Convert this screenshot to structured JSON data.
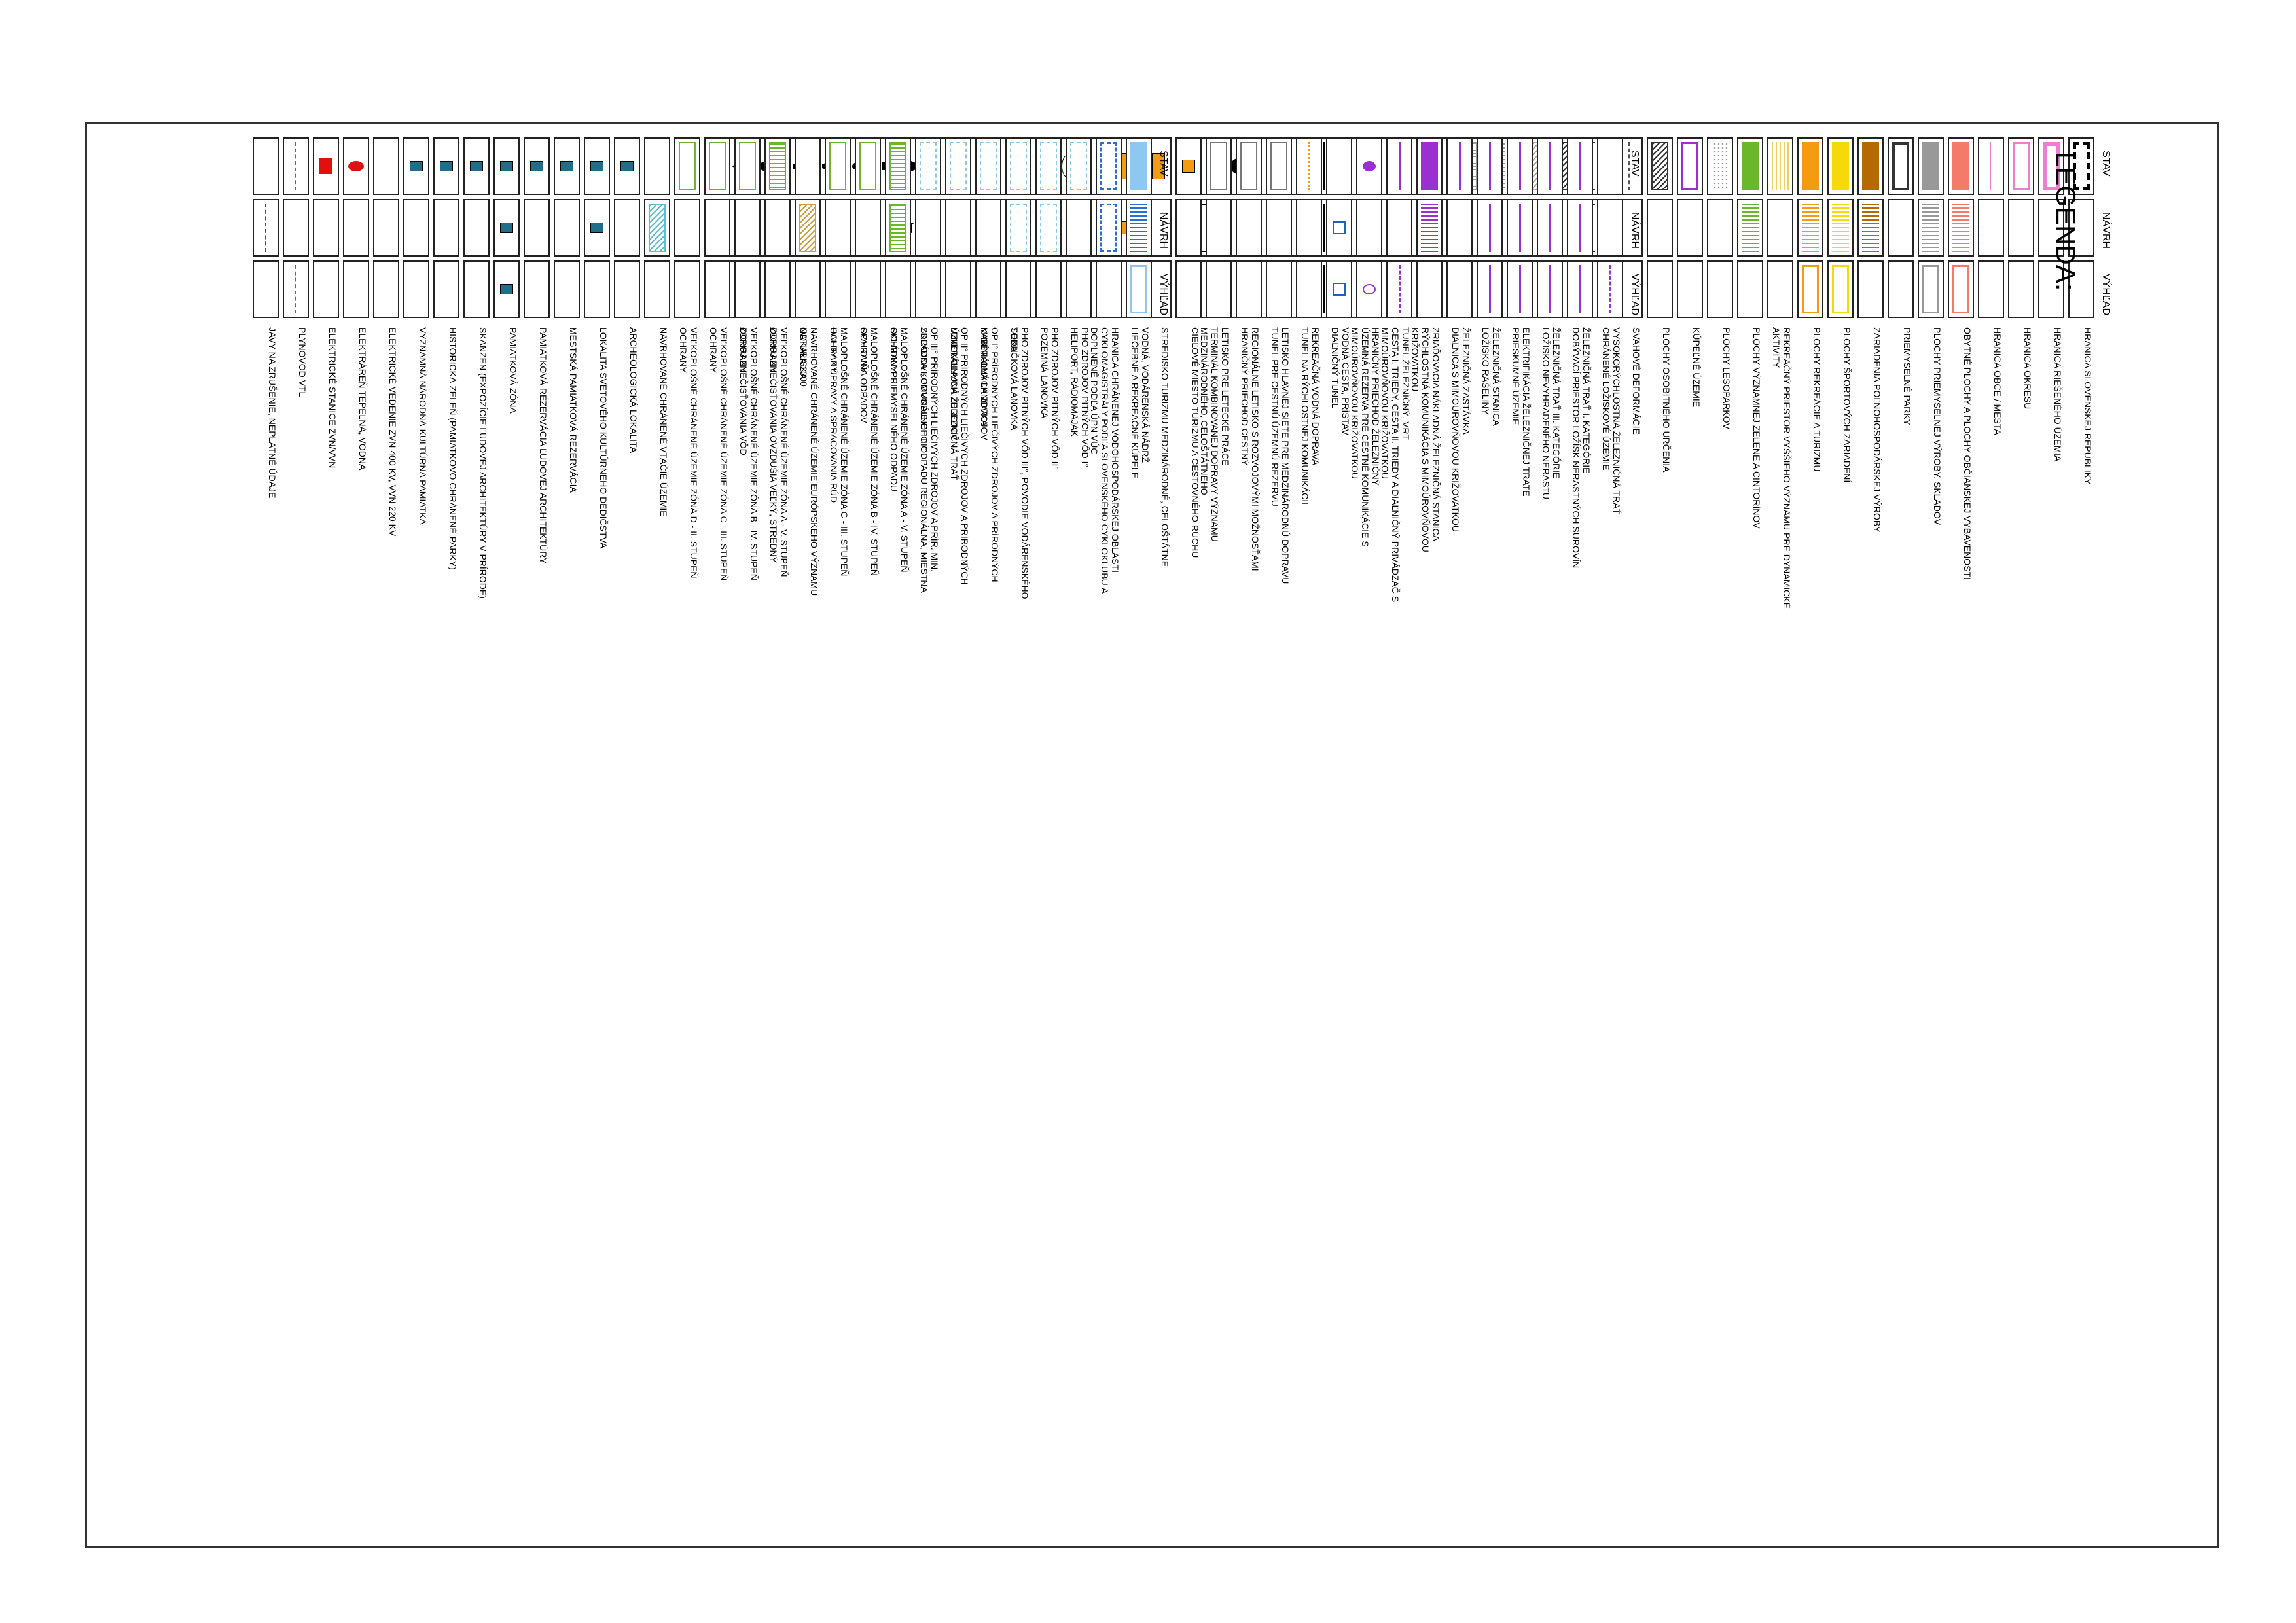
{
  "title": "LEGENDA:",
  "headers": {
    "stav": "STAV",
    "navrh": "NÁVRH",
    "vyhlad": "VÝHĽAD"
  },
  "colors": {
    "orange": "#f39c12",
    "yellow": "#f5d90a",
    "brown": "#b36b00",
    "green": "#6ab82a",
    "pink": "#f07dd4",
    "salmon": "#f47a6b",
    "purple": "#9b2fd1",
    "teal": "#1f6f8b",
    "lightblue": "#8ec8f0",
    "red": "#e01010"
  },
  "columns": [
    {
      "rows": [
        {
          "label": "HRANICA SLOVENSKEJ REPUBLIKY",
          "stav": "border-black",
          "navrh": "",
          "vyhlad": ""
        },
        {
          "label": "HRANICA RIEŠENÉHO ÚZEMIA",
          "stav": "pink-frame",
          "navrh": "",
          "vyhlad": ""
        },
        {
          "label": "HRANICA OKRESU",
          "stav": "pink-thin",
          "navrh": "",
          "vyhlad": ""
        },
        {
          "label": "HRANICA OBCE / MESTA",
          "stav": "pink-line",
          "navrh": "",
          "vyhlad": ""
        },
        {
          "label": "OBYTNÉ PLOCHY A PLOCHY OBČIANSKEJ VYBAVENOSTI",
          "stav": "salmon",
          "navrh": "salmon-hatch",
          "vyhlad": "salmon-frame"
        },
        {
          "label": "PLOCHY PRIEMYSELNEJ VÝROBY, SKLADOV",
          "stav": "gray",
          "navrh": "gray-hatch",
          "vyhlad": "gray-frame"
        },
        {
          "label": "PRIEMYSELNÉ PARKY",
          "stav": "black-frame",
          "navrh": "",
          "vyhlad": ""
        },
        {
          "label": "ZARIADENIA POĽNOHOSPODÁRSKEJ VÝROBY",
          "stav": "brown",
          "navrh": "brown-hatch",
          "vyhlad": ""
        },
        {
          "label": "PLOCHY ŠPORTOVÝCH ZARIADENÍ",
          "stav": "yellow",
          "navrh": "yellow-hatch",
          "vyhlad": "yellow-frame"
        },
        {
          "label": "PLOCHY REKREÁCIE A TURIZMU",
          "stav": "orange",
          "navrh": "orange-hatch",
          "vyhlad": "orange-frame"
        },
        {
          "label": "REKREAČNÝ PRIESTOR VYŠŠIEHO VÝZNAMU PRE DYNAMICKÉ AKTIVITY",
          "stav": "yellow-lines",
          "navrh": "",
          "vyhlad": ""
        },
        {
          "label": "PLOCHY VÝZNAMNEJ ZELENE A CINTORÍNOV",
          "stav": "green",
          "navrh": "green-hatch",
          "vyhlad": ""
        },
        {
          "label": "PLOCHY LESOPARKOV",
          "stav": "dots",
          "navrh": "",
          "vyhlad": ""
        },
        {
          "label": "KÚPEĽNÉ ÚZEMIE",
          "stav": "purple-frame",
          "navrh": "",
          "vyhlad": ""
        },
        {
          "label": "PLOCHY OSOBITNÉHO URČENIA",
          "stav": "diag",
          "navrh": "",
          "vyhlad": ""
        },
        {
          "label": "SVAHOVÉ DEFORMÁCIE",
          "stav": "dash-line",
          "navrh": "",
          "vyhlad": ""
        },
        {
          "label": "CHRÁNENÉ LOŽISKOVÉ ÚZEMIE",
          "stav": "tick-frame",
          "navrh": "tick-frame",
          "vyhlad": ""
        },
        {
          "label": "DOBÝVACÍ PRIESTOR LOŽÍSK NERASTNÝCH SUROVÍN",
          "stav": "diag",
          "navrh": "",
          "vyhlad": ""
        },
        {
          "label": "LOŽISKO NEVYHRADENÉHO NERASTU",
          "stav": "diag-light",
          "navrh": "",
          "vyhlad": ""
        },
        {
          "label": "PRIESKUMNÉ ÚZEMIE",
          "stav": "dots",
          "navrh": "",
          "vyhlad": ""
        },
        {
          "label": "LOŽISKO RAŠELINY",
          "stav": "grid",
          "navrh": "",
          "vyhlad": ""
        },
        {
          "label": "DIAĽNICA S MIMOÚROVŇOVOU KRIŽOVATKOU",
          "stav": "road-ring",
          "navrh": "road-ring",
          "vyhlad": "road-ring"
        },
        {
          "label": "RÝCHLOSTNÁ KOMUNIKÁCIA S MIMOÚROVŇOVOU KRIŽOVATKOU",
          "stav": "road-thick",
          "navrh": "road-thick",
          "vyhlad": "road-thick"
        },
        {
          "label": "CESTA I. TRIEDY, CESTA II. TRIEDY A DIAĽNIČNÝ PRIVÁDZAČ S MIMOÚROVŇOVOU KRIŽOVATKOU",
          "stav": "road-thin",
          "navrh": "road-thin",
          "vyhlad": "road-thin"
        },
        {
          "label": "ÚZEMNÁ REZERVA PRE CESTNÉ KOMUNIKÁCIE S MIMOÚROVŇOVOU KRIŽOVATKOU",
          "stav": "",
          "navrh": "",
          "vyhlad": "road-dash"
        },
        {
          "label": "DIAĽNIČNÝ TUNEL",
          "stav": "tunnel",
          "navrh": "tunnel",
          "vyhlad": "tunnel"
        },
        {
          "label": "TUNEL NA RÝCHLOSTNEJ KOMUNIKÁCII",
          "stav": "",
          "navrh": "tunnel-thin",
          "vyhlad": "tunnel-thin"
        },
        {
          "label": "TUNEL PRE CESTNÚ ÚZEMNÚ REZERVU",
          "stav": "",
          "navrh": "",
          "vyhlad": "road-dash"
        },
        {
          "label": "HRANIČNÝ PRIECHOD CESTNÝ",
          "stav": "crossing",
          "navrh": "",
          "vyhlad": ""
        },
        {
          "label": "TERMINÁL KOMBINOVANEJ DOPRAVY VÝZNAMU MEDZINÁRODNÉHO, CELOŠTÁTNEHO",
          "stav": "",
          "navrh": "tkd",
          "vyhlad": ""
        }
      ]
    },
    {
      "rows": [
        {
          "label": "VYSOKORÝCHLOSTNÁ ŽELEZNIČNÁ TRAŤ",
          "stav": "",
          "navrh": "",
          "vyhlad": "rail-dash"
        },
        {
          "label": "ŽELEZNIČNÁ TRAŤ I. KATEGÓRIE",
          "stav": "rail",
          "navrh": "rail",
          "vyhlad": "rail"
        },
        {
          "label": "ŽELEZNIČNÁ TRAŤ III. KATEGÓRIE",
          "stav": "rail",
          "navrh": "rail",
          "vyhlad": "rail"
        },
        {
          "label": "ELEKTRIFIKÁCIA ŽELEZNIČNEJ TRATE",
          "stav": "rail",
          "navrh": "rail",
          "vyhlad": "rail"
        },
        {
          "label": "ŽELEZNIČNÁ STANICA",
          "stav": "rail-station",
          "navrh": "rail",
          "vyhlad": "rail-station"
        },
        {
          "label": "ŽELEZNIČNÁ ZASTÁVKA",
          "stav": "rail",
          "navrh": "",
          "vyhlad": ""
        },
        {
          "label": "ZRIAĎOVACIA NÁKLADNÁ ŽELEZNIČNÁ STANICA",
          "stav": "purple-block",
          "navrh": "purple-hatch",
          "vyhlad": ""
        },
        {
          "label": "TUNEL ŽELEZNIČNÝ, VRT",
          "stav": "rail",
          "navrh": "",
          "vyhlad": "rail-dash"
        },
        {
          "label": "HRANIČNÝ PRIECHOD ŽELEZNIČNÝ",
          "stav": "purple-circle",
          "navrh": "",
          "vyhlad": "purple-circle-o"
        },
        {
          "label": "VODNÁ CESTA, PRÍSTAV",
          "stav": "",
          "navrh": "water",
          "vyhlad": "water"
        },
        {
          "label": "REKREAČNÁ VODNÁ DOPRAVA",
          "stav": "orange-dots",
          "navrh": "",
          "vyhlad": ""
        },
        {
          "label": "LETISKO HLAVNEJ SIETE PRE MEDZINÁRODNÚ DOPRAVU",
          "stav": "airport",
          "navrh": "",
          "vyhlad": ""
        },
        {
          "label": "REGIONÁLNE LETISKO S ROZVOJOVÝMI MOŽNOSŤAMI",
          "stav": "airport",
          "navrh": "",
          "vyhlad": ""
        },
        {
          "label": "LETISKO PRE LETECKÉ PRÁCE",
          "stav": "airport",
          "navrh": "",
          "vyhlad": ""
        },
        {
          "label": "CIEĽOVÉ MIESTO TURIZMU A CESTOVNÉHO RUCHU",
          "stav": "orange-sq",
          "navrh": "",
          "vyhlad": ""
        },
        {
          "label": "STREDISKO TURIZMU MEDZINÁRODNÉ, CELOŠTÁTNE",
          "stav": "orange-sq2",
          "navrh": "",
          "vyhlad": ""
        },
        {
          "label": "LIEČEBNÉ A REKREAČNÉ KÚPELE",
          "stav": "orange-sq2",
          "navrh": "orange-sq",
          "vyhlad": ""
        },
        {
          "label": "CYKLOMAGISTRÁLY PODĽA SLOVENSKÉHO CYKLOKLUBU A DOPLNENÉ PODĽA ÚPN VÚC",
          "stav": "",
          "navrh": "orange-dots",
          "vyhlad": ""
        },
        {
          "label": "HELIPORT, RÁDIOMAJÁK",
          "stav": "heli",
          "navrh": "",
          "vyhlad": ""
        },
        {
          "label": "POZEMNÁ LANOVKA",
          "stav": "",
          "navrh": "purple-line",
          "vyhlad": "purple-line"
        },
        {
          "label": "SEDAČKOVÁ LANOVKA",
          "stav": "cable",
          "navrh": "cable",
          "vyhlad": ""
        },
        {
          "label": "KABÍNKOVÁ LANOVKA",
          "stav": "cable-dot",
          "navrh": "cable",
          "vyhlad": ""
        },
        {
          "label": "ÚZKOKOĽAJNÁ ŽELEZNIČNÁ TRAŤ",
          "stav": "purple-line",
          "navrh": "purple-line",
          "vyhlad": ""
        },
        {
          "label": "SKLÁDKA KOMUNÁLNEHO ODPADU REGIONÁLNA, MIESTNA",
          "stav": "triangle",
          "navrh": "triangle-o",
          "vyhlad": ""
        },
        {
          "label": "SKLÁDKA PRIEMYSELNÉHO ODPADU",
          "stav": "square",
          "navrh": "",
          "vyhlad": ""
        },
        {
          "label": "SPAĽOVŇA ODPADOV",
          "stav": "ring",
          "navrh": "",
          "vyhlad": ""
        },
        {
          "label": "HALDY Z ÚPRAVY A SPRACOVANIA RÚD",
          "stav": "hex",
          "navrh": "",
          "vyhlad": ""
        },
        {
          "label": "ODKALISKÁ",
          "stav": "small-sq",
          "navrh": "",
          "vyhlad": ""
        },
        {
          "label": "ZDROJ ZNEČISŤOVANIA OVZDUŠIA VEĽKÝ, STREDNÝ",
          "stav": "circles",
          "navrh": "",
          "vyhlad": ""
        },
        {
          "label": "ZDROJ ZNEČISŤOVANIA VÔD",
          "stav": "diamond",
          "navrh": "",
          "vyhlad": ""
        }
      ]
    },
    {
      "rows": [
        {
          "label": "VODNÁ, VODÁRENSKÁ NÁDRŽ",
          "stav": "lightblue",
          "navrh": "blue-hatch",
          "vyhlad": "blue-frame"
        },
        {
          "label": "HRANICA CHRÁNENEJ VODOHOSPODÁRSKEJ OBLASTI",
          "stav": "blue-tick",
          "navrh": "blue-tick",
          "vyhlad": ""
        },
        {
          "label": "PHO ZDROJOV PITNÝCH VÔD I°",
          "stav": "blue-dash",
          "navrh": "",
          "vyhlad": ""
        },
        {
          "label": "PHO ZDROJOV PITNÝCH VÔD II°",
          "stav": "blue-dash",
          "navrh": "blue-dash",
          "vyhlad": ""
        },
        {
          "label": "PHO ZDROJOV PITNÝCH VÔD III°, POVODIE VODÁRENSKÉHO TOKU",
          "stav": "blue-dash",
          "navrh": "blue-dash",
          "vyhlad": ""
        },
        {
          "label": "OP I° PRÍRODNÝCH LIEČIVÝCH ZDROJOV A PRÍRODNÝCH MINERÁLNYCH ZDROJOV",
          "stav": "blue-dash",
          "navrh": "",
          "vyhlad": ""
        },
        {
          "label": "OP II° PRÍRODNÝCH LIEČIVÝCH ZDROJOV A PRÍRODNÝCH MINERÁLNYCH ZDROJOV",
          "stav": "blue-dash",
          "navrh": "",
          "vyhlad": ""
        },
        {
          "label": "OP III° PRÍRODNÝCH LIEČIVÝCH ZDROJOV A PRÍR. MIN. ZDROJOV , POVODIE OP III°",
          "stav": "blue-dash",
          "navrh": "",
          "vyhlad": ""
        },
        {
          "label": "MALOPLOŠNÉ CHRÁNENÉ ÚZEMIE ZÓNA A - V. STUPEŇ OCHRANY",
          "stav": "green-hatch-frame",
          "navrh": "green-hatch-frame",
          "vyhlad": ""
        },
        {
          "label": "MALOPLOŠNÉ CHRÁNENÉ ÚZEMIE ZÓNA B - IV. STUPEŇ OCHRANY",
          "stav": "green-frame",
          "navrh": "",
          "vyhlad": ""
        },
        {
          "label": "MALOPLOŠNÉ CHRÁNENÉ ÚZEMIE ZÓNA C - III. STUPEŇ OCHRANY",
          "stav": "green-frame",
          "navrh": "",
          "vyhlad": ""
        },
        {
          "label": "NAVRHOVANÉ CHRÁNENÉ ÚZEMIE EURÓPSKEHO VÝZNAMU NATURA 2000",
          "stav": "",
          "navrh": "natura",
          "vyhlad": ""
        },
        {
          "label": "VEĽKOPLOŠNÉ CHRÁNENÉ ÚZEMIE ZÓNA A - V. STUPEŇ OCHRANY",
          "stav": "green-hatch-frame",
          "navrh": "",
          "vyhlad": ""
        },
        {
          "label": "VEĽKOPLOŠNÉ CHRÁNENÉ ÚZEMIE ZÓNA B - IV. STUPEŇ OCHRANY",
          "stav": "green-frame",
          "navrh": "",
          "vyhlad": ""
        },
        {
          "label": "VEĽKOPLOŠNÉ CHRÁNENÉ ÚZEMIE ZÓNA C - III. STUPEŇ OCHRANY",
          "stav": "green-frame",
          "navrh": "",
          "vyhlad": ""
        },
        {
          "label": "VEĽKOPLOŠNÉ CHRÁNENÉ ÚZEMIE ZÓNA D - II. STUPEŇ OCHRANY",
          "stav": "green-frame",
          "navrh": "",
          "vyhlad": ""
        },
        {
          "label": "NAVRHOVANÉ CHRÁNENÉ VTÁČIE ÚZEMIE",
          "stav": "",
          "navrh": "cyan-diag",
          "vyhlad": ""
        },
        {
          "label": "ARCHEOLOGICKÁ LOKALITA",
          "stav": "teal-sq",
          "navrh": "",
          "vyhlad": ""
        },
        {
          "label": "LOKALITA SVETOVÉHO KULTÚRNEHO DEDIČSTVA",
          "stav": "teal-sq",
          "navrh": "teal-sq",
          "vyhlad": ""
        },
        {
          "label": "MESTSKÁ PAMIATKOVÁ REZERVÁCIA",
          "stav": "teal-sq",
          "navrh": "",
          "vyhlad": ""
        },
        {
          "label": "PAMIATKOVÁ REZERVÁCIA ĽUDOVEJ ARCHITEKTÚRY",
          "stav": "teal-sq",
          "navrh": "",
          "vyhlad": ""
        },
        {
          "label": "PAMIATKOVÁ ZÓNA",
          "stav": "teal-sq",
          "navrh": "teal-sq",
          "vyhlad": "teal-sq"
        },
        {
          "label": "SKANZEN (EXPOZÍCIE ĽUDOVEJ ARCHITEKTÚRY V PRÍRODE)",
          "stav": "teal-sq",
          "navrh": "",
          "vyhlad": ""
        },
        {
          "label": "HISTORICKÁ ZELEŇ (PAMIATKOVO CHRÁNENÉ PARKY)",
          "stav": "teal-sq",
          "navrh": "",
          "vyhlad": ""
        },
        {
          "label": "VÝZNAMNÁ NÁRODNÁ KULTÚRNA PAMIATKA",
          "stav": "teal-sq",
          "navrh": "",
          "vyhlad": ""
        },
        {
          "label": "ELEKTRICKÉ VEDENIE ZVN 400 KV, VVN 220 KV",
          "stav": "thin-line",
          "navrh": "thin-line",
          "vyhlad": ""
        },
        {
          "label": "ELEKTRÁREŇ TEPELNÁ, VODNÁ",
          "stav": "red-shapes",
          "navrh": "",
          "vyhlad": ""
        },
        {
          "label": "ELEKTRICKÉ STANICE ZVN/VVN",
          "stav": "red-sq",
          "navrh": "",
          "vyhlad": ""
        },
        {
          "label": "PLYNOVOD VTL",
          "stav": "green-dots",
          "navrh": "",
          "vyhlad": "green-dots"
        },
        {
          "label": "JAVY NA ZRUŠENIE, NEPLATNÉ ÚDAJE",
          "stav": "",
          "navrh": "red-x",
          "vyhlad": ""
        }
      ]
    }
  ]
}
